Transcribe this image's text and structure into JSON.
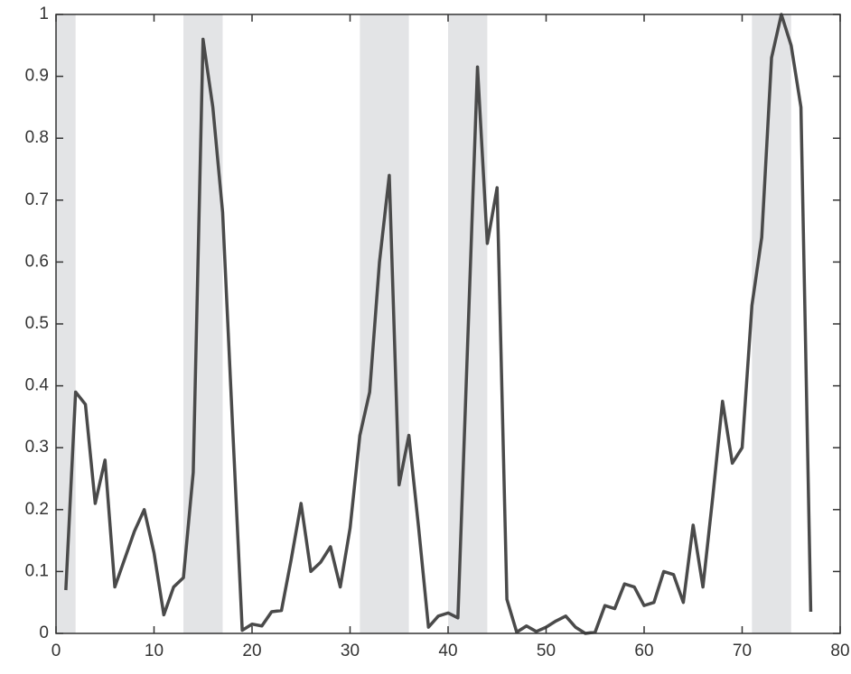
{
  "chart_data": {
    "type": "line",
    "x": [
      1,
      2,
      3,
      4,
      5,
      6,
      7,
      8,
      9,
      10,
      11,
      12,
      13,
      14,
      15,
      16,
      17,
      18,
      19,
      20,
      21,
      22,
      23,
      24,
      25,
      26,
      27,
      28,
      29,
      30,
      31,
      32,
      33,
      34,
      35,
      36,
      37,
      38,
      39,
      40,
      41,
      42,
      43,
      44,
      45,
      46,
      47,
      48,
      49,
      50,
      51,
      52,
      53,
      54,
      55,
      56,
      57,
      58,
      59,
      60,
      61,
      62,
      63,
      64,
      65,
      66,
      67,
      68,
      69,
      70,
      71,
      72,
      73,
      74,
      75,
      76,
      77
    ],
    "series": [
      {
        "color": "#4a4a4a",
        "values": [
          0.07,
          0.39,
          0.37,
          0.21,
          0.28,
          0.075,
          0.12,
          0.165,
          0.2,
          0.13,
          0.03,
          0.075,
          0.09,
          0.26,
          0.96,
          0.85,
          0.68,
          0.34,
          0.005,
          0.015,
          0.012,
          0.035,
          0.037,
          0.12,
          0.21,
          0.1,
          0.115,
          0.14,
          0.075,
          0.17,
          0.32,
          0.39,
          0.6,
          0.74,
          0.24,
          0.32,
          0.17,
          0.01,
          0.028,
          0.033,
          0.025,
          0.47,
          0.915,
          0.63,
          0.72,
          0.055,
          0.002,
          0.012,
          0.003,
          0.01,
          0.02,
          0.028,
          0.01,
          0,
          0.002,
          0.045,
          0.04,
          0.08,
          0.075,
          0.045,
          0.05,
          0.1,
          0.095,
          0.05,
          0.175,
          0.075,
          0.22,
          0.375,
          0.275,
          0.3,
          0.53,
          0.64,
          0.93,
          1,
          0.95,
          0.85,
          0.035
        ]
      }
    ],
    "shaded_regions": [
      [
        0,
        2
      ],
      [
        13,
        17
      ],
      [
        31,
        36
      ],
      [
        40,
        44
      ],
      [
        71,
        75
      ]
    ],
    "shade_color": "#e3e4e6",
    "xlim": [
      0,
      80
    ],
    "xticks": [
      0,
      10,
      20,
      30,
      40,
      50,
      60,
      70,
      80
    ],
    "ylim": [
      0,
      1
    ],
    "yticks": [
      0,
      0.1,
      0.2,
      0.3,
      0.4,
      0.5,
      0.6,
      0.7,
      0.8,
      0.9,
      1
    ]
  }
}
